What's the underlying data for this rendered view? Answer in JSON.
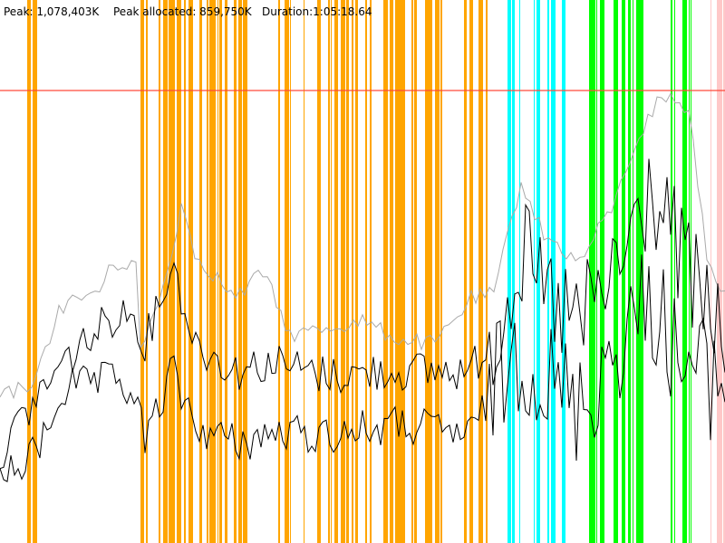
{
  "header": {
    "peak": "Peak: 1,078,403K",
    "peak_allocated": "Peak allocated: 859,750K",
    "duration": "Duration:1:05:18.64"
  }
}
